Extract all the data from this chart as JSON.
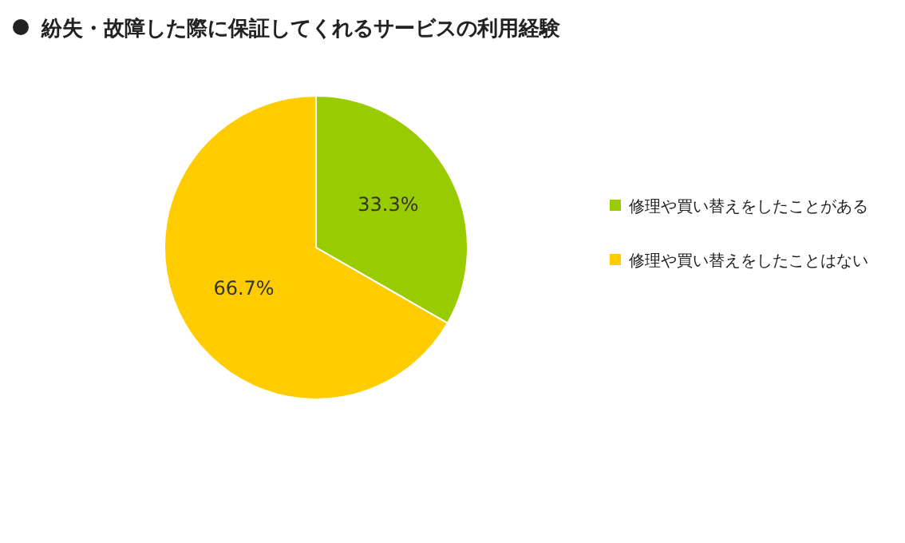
{
  "chart_data": {
    "type": "pie",
    "title": "紛失・故障した際に保証してくれるサービスの利用経験",
    "categories": [
      "修理や買い替えをしたことがある",
      "修理や買い替えをしたことはない"
    ],
    "values": [
      33.3,
      66.7
    ],
    "colors": [
      "#99cc00",
      "#ffcc00"
    ],
    "value_labels": [
      "33.3%",
      "66.7%"
    ],
    "legend": "right"
  }
}
